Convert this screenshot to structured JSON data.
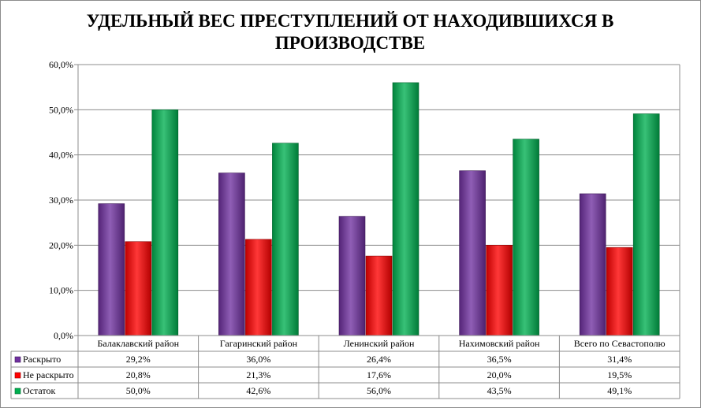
{
  "chart_data": {
    "type": "bar",
    "title_lines": [
      "УДЕЛЬНЫЙ ВЕС ПРЕСТУПЛЕНИЙ ОТ НАХОДИВШИХСЯ В",
      "ПРОИЗВОДСТВЕ"
    ],
    "categories": [
      "Балаклавский  район",
      "Гагаринский район",
      "Ленинский район",
      "Нахимовский  район",
      "Всего по Севастополю"
    ],
    "series": [
      {
        "name": "Раскрыто",
        "color": "#7030a0",
        "values": [
          29.2,
          36.0,
          26.4,
          36.5,
          31.4
        ],
        "labels": [
          "29,2%",
          "36,0%",
          "26,4%",
          "36,5%",
          "31,4%"
        ]
      },
      {
        "name": "Не раскрыто",
        "color": "#ff0000",
        "values": [
          20.8,
          21.3,
          17.6,
          20.0,
          19.5
        ],
        "labels": [
          "20,8%",
          "21,3%",
          "17,6%",
          "20,0%",
          "19,5%"
        ]
      },
      {
        "name": "Остаток",
        "color": "#00b050",
        "values": [
          50.0,
          42.6,
          56.0,
          43.5,
          49.1
        ],
        "labels": [
          "50,0%",
          "42,6%",
          "56,0%",
          "43,5%",
          "49,1%"
        ]
      }
    ],
    "ylim": [
      0,
      60
    ],
    "yticks": [
      0,
      10,
      20,
      30,
      40,
      50,
      60
    ],
    "ytick_labels": [
      "0,0%",
      "10,0%",
      "20,0%",
      "30,0%",
      "40,0%",
      "50,0%",
      "60,0%"
    ],
    "grid": true,
    "legend": "data-table"
  }
}
